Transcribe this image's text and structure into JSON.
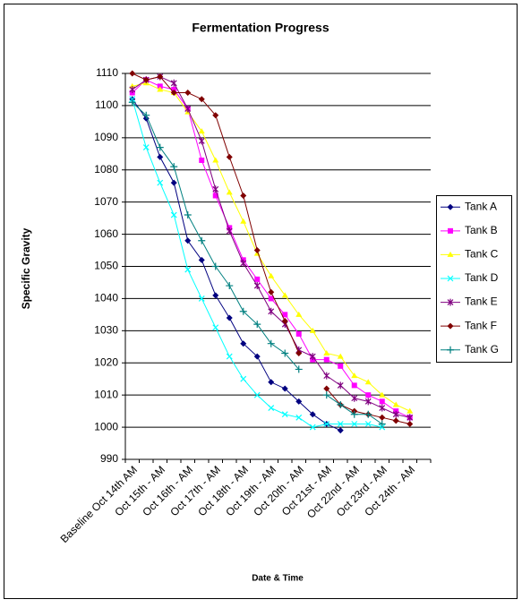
{
  "chart_data": {
    "type": "line",
    "title": "Fermentation Progress",
    "x_label": "Date & Time",
    "y_label": "Specific Gravity",
    "categories": [
      "Baseline Oct 14th AM",
      null,
      "Oct 15th - AM",
      null,
      "Oct 16th - AM",
      null,
      "Oct 17th - AM",
      null,
      "Oct 18th - AM",
      null,
      "Oct 19th - AM",
      null,
      "Oct 20th - AM",
      null,
      "Oct 21st - AM",
      null,
      "Oct 22nd - AM",
      null,
      "Oct 23rd - AM",
      null,
      "Oct 24th - AM",
      null
    ],
    "series": [
      {
        "name": "Tank A",
        "color": "#000080",
        "marker": "diamond",
        "values": [
          1102,
          1096,
          1084,
          1076,
          1058,
          1052,
          1041,
          1034,
          1026,
          1022,
          1014,
          1012,
          1008,
          1004,
          1001,
          999,
          null,
          null,
          null,
          null,
          null,
          null
        ]
      },
      {
        "name": "Tank B",
        "color": "#ff00ff",
        "marker": "square",
        "values": [
          1104,
          1108,
          1106,
          1105,
          1099,
          1083,
          1072,
          1062,
          1052,
          1046,
          1040,
          1035,
          1029,
          1021,
          1021,
          1019,
          1013,
          1010,
          1008,
          1005,
          1003,
          null
        ]
      },
      {
        "name": "Tank C",
        "color": "#ffff00",
        "marker": "triangle",
        "values": [
          1106,
          1107,
          1105,
          1104,
          1098,
          1092,
          1083,
          1073,
          1064,
          1054,
          1047,
          1041,
          1035,
          1030,
          1023,
          1022,
          1016,
          1014,
          1010,
          1007,
          1005,
          null
        ]
      },
      {
        "name": "Tank D",
        "color": "#00ffff",
        "marker": "x",
        "values": [
          1102,
          1087,
          1076,
          1066,
          1049,
          1040,
          1031,
          1022,
          1015,
          1010,
          1006,
          1004,
          1003,
          1000,
          1001,
          1001,
          1001,
          1001,
          1000,
          null,
          null,
          null
        ]
      },
      {
        "name": "Tank E",
        "color": "#800080",
        "marker": "star",
        "values": [
          1105,
          1108,
          1109,
          1107,
          1099,
          1089,
          1074,
          1061,
          1051,
          1044,
          1036,
          1032,
          1024,
          1022,
          1016,
          1013,
          1009,
          1008,
          1006,
          1004,
          1003,
          null
        ]
      },
      {
        "name": "Tank F",
        "color": "#800000",
        "marker": "diamond",
        "values": [
          1110,
          1108,
          1109,
          1104,
          1104,
          1102,
          1097,
          1084,
          1072,
          1055,
          1042,
          1033,
          1023,
          null,
          1012,
          1007,
          1005,
          1004,
          1003,
          1002,
          1001,
          null
        ]
      },
      {
        "name": "Tank G",
        "color": "#008080",
        "marker": "plus",
        "values": [
          1101,
          1097,
          1087,
          1081,
          1066,
          1058,
          1050,
          1044,
          1036,
          1032,
          1026,
          1023,
          1018,
          null,
          1010,
          1007,
          1004,
          1004,
          1001,
          null,
          null,
          null
        ]
      }
    ],
    "ylim": [
      990,
      1110
    ],
    "yticks": [
      990,
      1000,
      1010,
      1020,
      1030,
      1040,
      1050,
      1060,
      1070,
      1080,
      1090,
      1100,
      1110
    ],
    "grid": true,
    "legend": "right"
  }
}
